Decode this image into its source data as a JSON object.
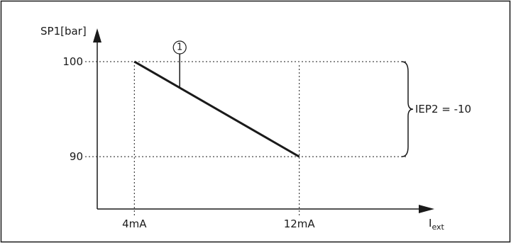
{
  "chart_data": {
    "type": "line",
    "xlabel": "I",
    "xlabel_sub": "ext",
    "ylabel": "SP1[bar]",
    "x_ticks": [
      "4mA",
      "12mA"
    ],
    "y_ticks": [
      "100",
      "90"
    ],
    "series": [
      {
        "x": [
          4,
          12
        ],
        "y": [
          100,
          90
        ]
      }
    ],
    "x_range": [
      2.2,
      18
    ],
    "y_range": [
      84.5,
      103.5
    ],
    "callout_label": "1",
    "brace_label": "IEP2 = -10",
    "grid": "dotted reference lines at ticks"
  },
  "colors": {
    "frame": "#1a1a1a",
    "line": "#1a1a1a",
    "dotted": "#1a1a1a"
  }
}
